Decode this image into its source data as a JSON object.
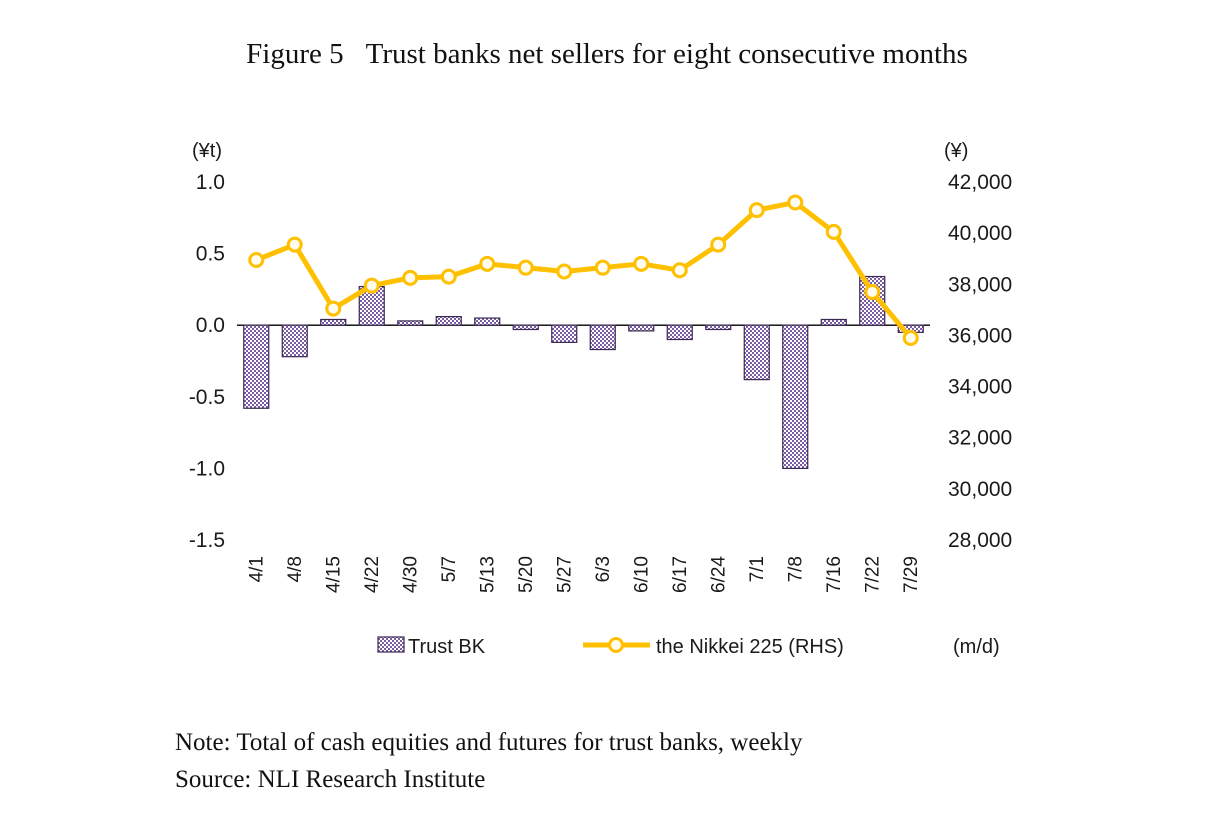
{
  "figure": {
    "label": "Figure 5",
    "title": "Trust banks net sellers for eight consecutive months",
    "note": "Note: Total of cash equities and futures for trust banks, weekly",
    "source": "Source: NLI Research Institute"
  },
  "chart_data": {
    "type": "bar",
    "combo": "bar + line (dual axis)",
    "title": "Trust banks net sellers for eight consecutive months",
    "categories": [
      "4/1",
      "4/8",
      "4/15",
      "4/22",
      "4/30",
      "5/7",
      "5/13",
      "5/20",
      "5/27",
      "6/3",
      "6/10",
      "6/17",
      "6/24",
      "7/1",
      "7/8",
      "7/16",
      "7/22",
      "7/29"
    ],
    "series": [
      {
        "name": "Trust BK",
        "type": "bar",
        "axis": "left",
        "values": [
          -0.58,
          -0.22,
          0.04,
          0.27,
          0.03,
          0.06,
          0.05,
          -0.03,
          -0.12,
          -0.17,
          -0.04,
          -0.1,
          -0.03,
          -0.38,
          -1.0,
          0.04,
          0.34,
          -0.05
        ]
      },
      {
        "name": "the Nikkei 225 (RHS)",
        "type": "line",
        "axis": "right",
        "values": [
          38950,
          39550,
          37050,
          37950,
          38250,
          38300,
          38800,
          38650,
          38500,
          38650,
          38800,
          38550,
          39550,
          40900,
          41200,
          40050,
          37700,
          35900
        ]
      }
    ],
    "left_axis": {
      "unit": "(¥t)",
      "min": -1.5,
      "max": 1.0,
      "tick_values": [
        1.0,
        0.5,
        0.0,
        -0.5,
        -1.0,
        -1.5
      ],
      "tick_labels": [
        "1.0",
        "0.5",
        "0.0",
        "-0.5",
        "-1.0",
        "-1.5"
      ]
    },
    "right_axis": {
      "unit": "(¥)",
      "min": 28000,
      "max": 42000,
      "tick_values": [
        42000,
        40000,
        38000,
        36000,
        34000,
        32000,
        30000,
        28000
      ],
      "tick_labels": [
        "42,000",
        "40,000",
        "38,000",
        "36,000",
        "34,000",
        "32,000",
        "30,000",
        "28,000"
      ]
    },
    "x_unit": "(m/d)",
    "legend": [
      "Trust BK",
      "the Nikkei 225 (RHS)"
    ],
    "grid": "off",
    "legend_position": "bottom",
    "colors": {
      "bar": "#7B5BA3",
      "bar_border": "#3A2A52",
      "line": "#FFC000",
      "marker_fill": "#FFFBEF",
      "text": "#1a1a1a"
    }
  }
}
